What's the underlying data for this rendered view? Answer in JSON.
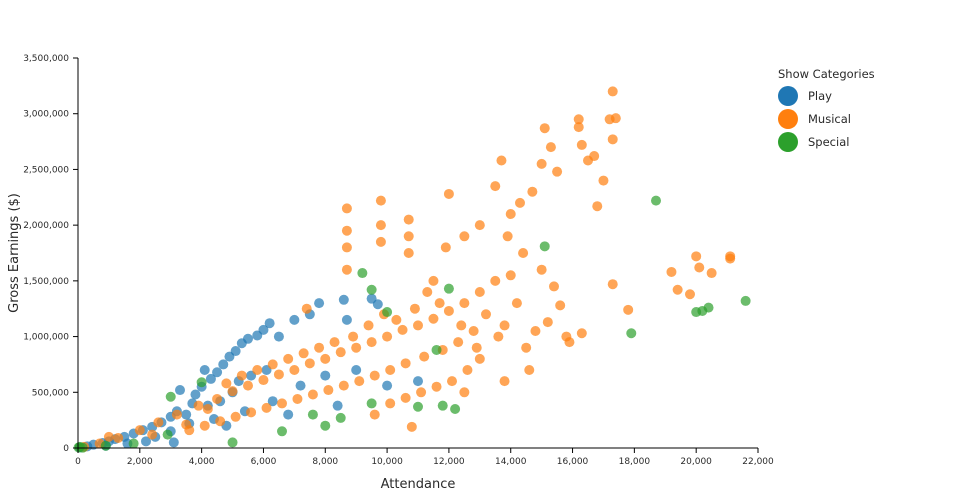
{
  "chart_data": {
    "type": "scatter",
    "title": "",
    "xlabel": "Attendance",
    "ylabel": "Gross Earnings ($)",
    "xlim": [
      0,
      22000
    ],
    "ylim": [
      0,
      3500000
    ],
    "x_ticks": [
      0,
      2000,
      4000,
      6000,
      8000,
      10000,
      12000,
      14000,
      16000,
      18000,
      20000,
      22000
    ],
    "x_tick_labels": [
      "0",
      "2,000",
      "4,000",
      "6,000",
      "8,000",
      "10,000",
      "12,000",
      "14,000",
      "16,000",
      "18,000",
      "20,000",
      "22,000"
    ],
    "y_ticks": [
      0,
      500000,
      1000000,
      1500000,
      2000000,
      2500000,
      3000000,
      3500000
    ],
    "y_tick_labels": [
      "0",
      "500,000",
      "1,000,000",
      "1,500,000",
      "2,000,000",
      "2,500,000",
      "3,000,000",
      "3,500,000"
    ],
    "grid": false,
    "legend": {
      "title": "Show Categories",
      "position": "top-right"
    },
    "series": [
      {
        "name": "Play",
        "color": "#1f77b4",
        "points": [
          [
            60,
            5000
          ],
          [
            300,
            15000
          ],
          [
            500,
            30000
          ],
          [
            800,
            45000
          ],
          [
            1000,
            60000
          ],
          [
            1200,
            80000
          ],
          [
            1500,
            100000
          ],
          [
            1800,
            130000
          ],
          [
            2100,
            160000
          ],
          [
            2400,
            190000
          ],
          [
            2700,
            230000
          ],
          [
            3000,
            280000
          ],
          [
            3200,
            330000
          ],
          [
            3300,
            520000
          ],
          [
            3500,
            300000
          ],
          [
            3700,
            400000
          ],
          [
            3800,
            480000
          ],
          [
            4000,
            550000
          ],
          [
            4100,
            700000
          ],
          [
            4300,
            620000
          ],
          [
            4500,
            680000
          ],
          [
            4700,
            750000
          ],
          [
            4900,
            820000
          ],
          [
            5100,
            870000
          ],
          [
            5300,
            940000
          ],
          [
            5500,
            980000
          ],
          [
            5800,
            1010000
          ],
          [
            6000,
            1060000
          ],
          [
            6200,
            1120000
          ],
          [
            6500,
            1000000
          ],
          [
            7000,
            1150000
          ],
          [
            7500,
            1200000
          ],
          [
            7800,
            1300000
          ],
          [
            8600,
            1330000
          ],
          [
            8700,
            1150000
          ],
          [
            9500,
            1340000
          ],
          [
            9700,
            1290000
          ],
          [
            4200,
            380000
          ],
          [
            4600,
            420000
          ],
          [
            5000,
            500000
          ],
          [
            5200,
            600000
          ],
          [
            5600,
            650000
          ],
          [
            6100,
            700000
          ],
          [
            2500,
            100000
          ],
          [
            3000,
            150000
          ],
          [
            3600,
            220000
          ],
          [
            4400,
            260000
          ],
          [
            5400,
            330000
          ],
          [
            6300,
            420000
          ],
          [
            7200,
            560000
          ],
          [
            8000,
            650000
          ],
          [
            9000,
            700000
          ],
          [
            10000,
            560000
          ],
          [
            11000,
            600000
          ],
          [
            3100,
            50000
          ],
          [
            4800,
            200000
          ],
          [
            6800,
            300000
          ],
          [
            8400,
            380000
          ],
          [
            2200,
            60000
          ],
          [
            1600,
            40000
          ],
          [
            900,
            20000
          ]
        ]
      },
      {
        "name": "Musical",
        "color": "#ff7f0e",
        "points": [
          [
            200,
            10000
          ],
          [
            700,
            40000
          ],
          [
            1300,
            90000
          ],
          [
            2000,
            160000
          ],
          [
            2600,
            230000
          ],
          [
            3200,
            300000
          ],
          [
            3900,
            380000
          ],
          [
            4500,
            440000
          ],
          [
            5000,
            510000
          ],
          [
            5500,
            560000
          ],
          [
            6000,
            610000
          ],
          [
            6500,
            660000
          ],
          [
            7000,
            700000
          ],
          [
            7500,
            760000
          ],
          [
            8000,
            800000
          ],
          [
            8500,
            860000
          ],
          [
            9000,
            900000
          ],
          [
            9500,
            950000
          ],
          [
            10000,
            1000000
          ],
          [
            10500,
            1060000
          ],
          [
            11000,
            1100000
          ],
          [
            11500,
            1160000
          ],
          [
            12000,
            1230000
          ],
          [
            12500,
            1300000
          ],
          [
            13000,
            1400000
          ],
          [
            13500,
            1500000
          ],
          [
            14000,
            1550000
          ],
          [
            8700,
            2150000
          ],
          [
            8700,
            1950000
          ],
          [
            8700,
            1800000
          ],
          [
            8700,
            1600000
          ],
          [
            9800,
            2220000
          ],
          [
            9800,
            2000000
          ],
          [
            9800,
            1850000
          ],
          [
            10700,
            2050000
          ],
          [
            10700,
            1900000
          ],
          [
            10700,
            1750000
          ],
          [
            12000,
            2280000
          ],
          [
            13700,
            2580000
          ],
          [
            13500,
            2350000
          ],
          [
            14000,
            2100000
          ],
          [
            14300,
            2200000
          ],
          [
            14700,
            2300000
          ],
          [
            15000,
            2550000
          ],
          [
            15100,
            2870000
          ],
          [
            15300,
            2700000
          ],
          [
            15500,
            2480000
          ],
          [
            16200,
            2950000
          ],
          [
            16200,
            2880000
          ],
          [
            16300,
            2720000
          ],
          [
            16500,
            2580000
          ],
          [
            16700,
            2620000
          ],
          [
            16800,
            2170000
          ],
          [
            17000,
            2400000
          ],
          [
            17200,
            2950000
          ],
          [
            17300,
            3200000
          ],
          [
            17300,
            2770000
          ],
          [
            17400,
            2960000
          ],
          [
            19200,
            1580000
          ],
          [
            19400,
            1420000
          ],
          [
            19800,
            1380000
          ],
          [
            20000,
            1720000
          ],
          [
            20100,
            1620000
          ],
          [
            20500,
            1570000
          ],
          [
            21100,
            1700000
          ],
          [
            21100,
            1720000
          ],
          [
            17300,
            1470000
          ],
          [
            17800,
            1240000
          ],
          [
            15600,
            1280000
          ],
          [
            16300,
            1030000
          ],
          [
            15800,
            1000000
          ],
          [
            15200,
            1130000
          ],
          [
            14800,
            1050000
          ],
          [
            14500,
            900000
          ],
          [
            13800,
            1100000
          ],
          [
            13200,
            1200000
          ],
          [
            12800,
            1050000
          ],
          [
            12300,
            950000
          ],
          [
            11800,
            880000
          ],
          [
            11200,
            820000
          ],
          [
            10600,
            760000
          ],
          [
            10100,
            700000
          ],
          [
            9600,
            650000
          ],
          [
            9100,
            600000
          ],
          [
            8600,
            560000
          ],
          [
            8100,
            520000
          ],
          [
            7600,
            480000
          ],
          [
            7100,
            440000
          ],
          [
            6600,
            400000
          ],
          [
            6100,
            360000
          ],
          [
            5600,
            320000
          ],
          [
            5100,
            280000
          ],
          [
            4600,
            240000
          ],
          [
            4100,
            200000
          ],
          [
            3600,
            160000
          ],
          [
            13000,
            800000
          ],
          [
            12600,
            700000
          ],
          [
            12100,
            600000
          ],
          [
            11600,
            550000
          ],
          [
            11100,
            500000
          ],
          [
            10600,
            450000
          ],
          [
            10100,
            400000
          ],
          [
            9600,
            300000
          ],
          [
            11500,
            1500000
          ],
          [
            11900,
            1800000
          ],
          [
            12500,
            1900000
          ],
          [
            13000,
            2000000
          ],
          [
            13900,
            1900000
          ],
          [
            14400,
            1750000
          ],
          [
            15000,
            1600000
          ],
          [
            15400,
            1450000
          ],
          [
            14200,
            1300000
          ],
          [
            13600,
            1000000
          ],
          [
            12900,
            900000
          ],
          [
            12400,
            1100000
          ],
          [
            11700,
            1300000
          ],
          [
            11300,
            1400000
          ],
          [
            10900,
            1250000
          ],
          [
            10300,
            1150000
          ],
          [
            9900,
            1200000
          ],
          [
            9400,
            1100000
          ],
          [
            8900,
            1000000
          ],
          [
            8300,
            950000
          ],
          [
            7800,
            900000
          ],
          [
            7300,
            850000
          ],
          [
            6800,
            800000
          ],
          [
            6300,
            750000
          ],
          [
            5800,
            700000
          ],
          [
            5300,
            650000
          ],
          [
            4800,
            580000
          ],
          [
            10800,
            190000
          ],
          [
            12500,
            500000
          ],
          [
            13800,
            600000
          ],
          [
            14600,
            700000
          ],
          [
            15900,
            950000
          ],
          [
            1000,
            100000
          ],
          [
            2400,
            120000
          ],
          [
            3500,
            210000
          ],
          [
            4200,
            350000
          ],
          [
            7400,
            1250000
          ]
        ]
      },
      {
        "name": "Special",
        "color": "#2ca02c",
        "points": [
          [
            20,
            5000
          ],
          [
            60,
            10000
          ],
          [
            150,
            3000
          ],
          [
            900,
            20000
          ],
          [
            1800,
            40000
          ],
          [
            2900,
            120000
          ],
          [
            3000,
            460000
          ],
          [
            4000,
            590000
          ],
          [
            5000,
            50000
          ],
          [
            6600,
            150000
          ],
          [
            8000,
            200000
          ],
          [
            9200,
            1570000
          ],
          [
            9500,
            1420000
          ],
          [
            9500,
            400000
          ],
          [
            10000,
            1220000
          ],
          [
            11600,
            880000
          ],
          [
            12000,
            1430000
          ],
          [
            11000,
            370000
          ],
          [
            11800,
            380000
          ],
          [
            15100,
            1810000
          ],
          [
            18700,
            2220000
          ],
          [
            17900,
            1030000
          ],
          [
            20000,
            1220000
          ],
          [
            20200,
            1230000
          ],
          [
            20400,
            1260000
          ],
          [
            21600,
            1320000
          ],
          [
            8500,
            270000
          ],
          [
            7600,
            300000
          ],
          [
            12200,
            350000
          ]
        ]
      }
    ]
  }
}
